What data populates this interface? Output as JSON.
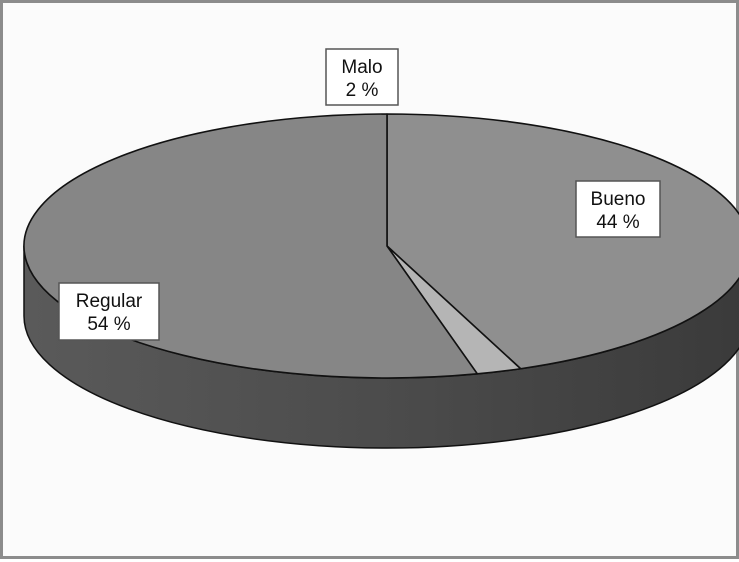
{
  "chart_data": {
    "type": "pie",
    "title": "",
    "three_d": true,
    "legend": "none",
    "slices": [
      {
        "label": "Bueno",
        "value": 44,
        "display": "44 %",
        "color": "#8f8f8f"
      },
      {
        "label": "Malo",
        "value": 2,
        "display": "2 %",
        "color": "#b5b5b5"
      },
      {
        "label": "Regular",
        "value": 54,
        "display": "54 %",
        "color": "#868686"
      }
    ],
    "side_color": "#4e4e4e"
  }
}
